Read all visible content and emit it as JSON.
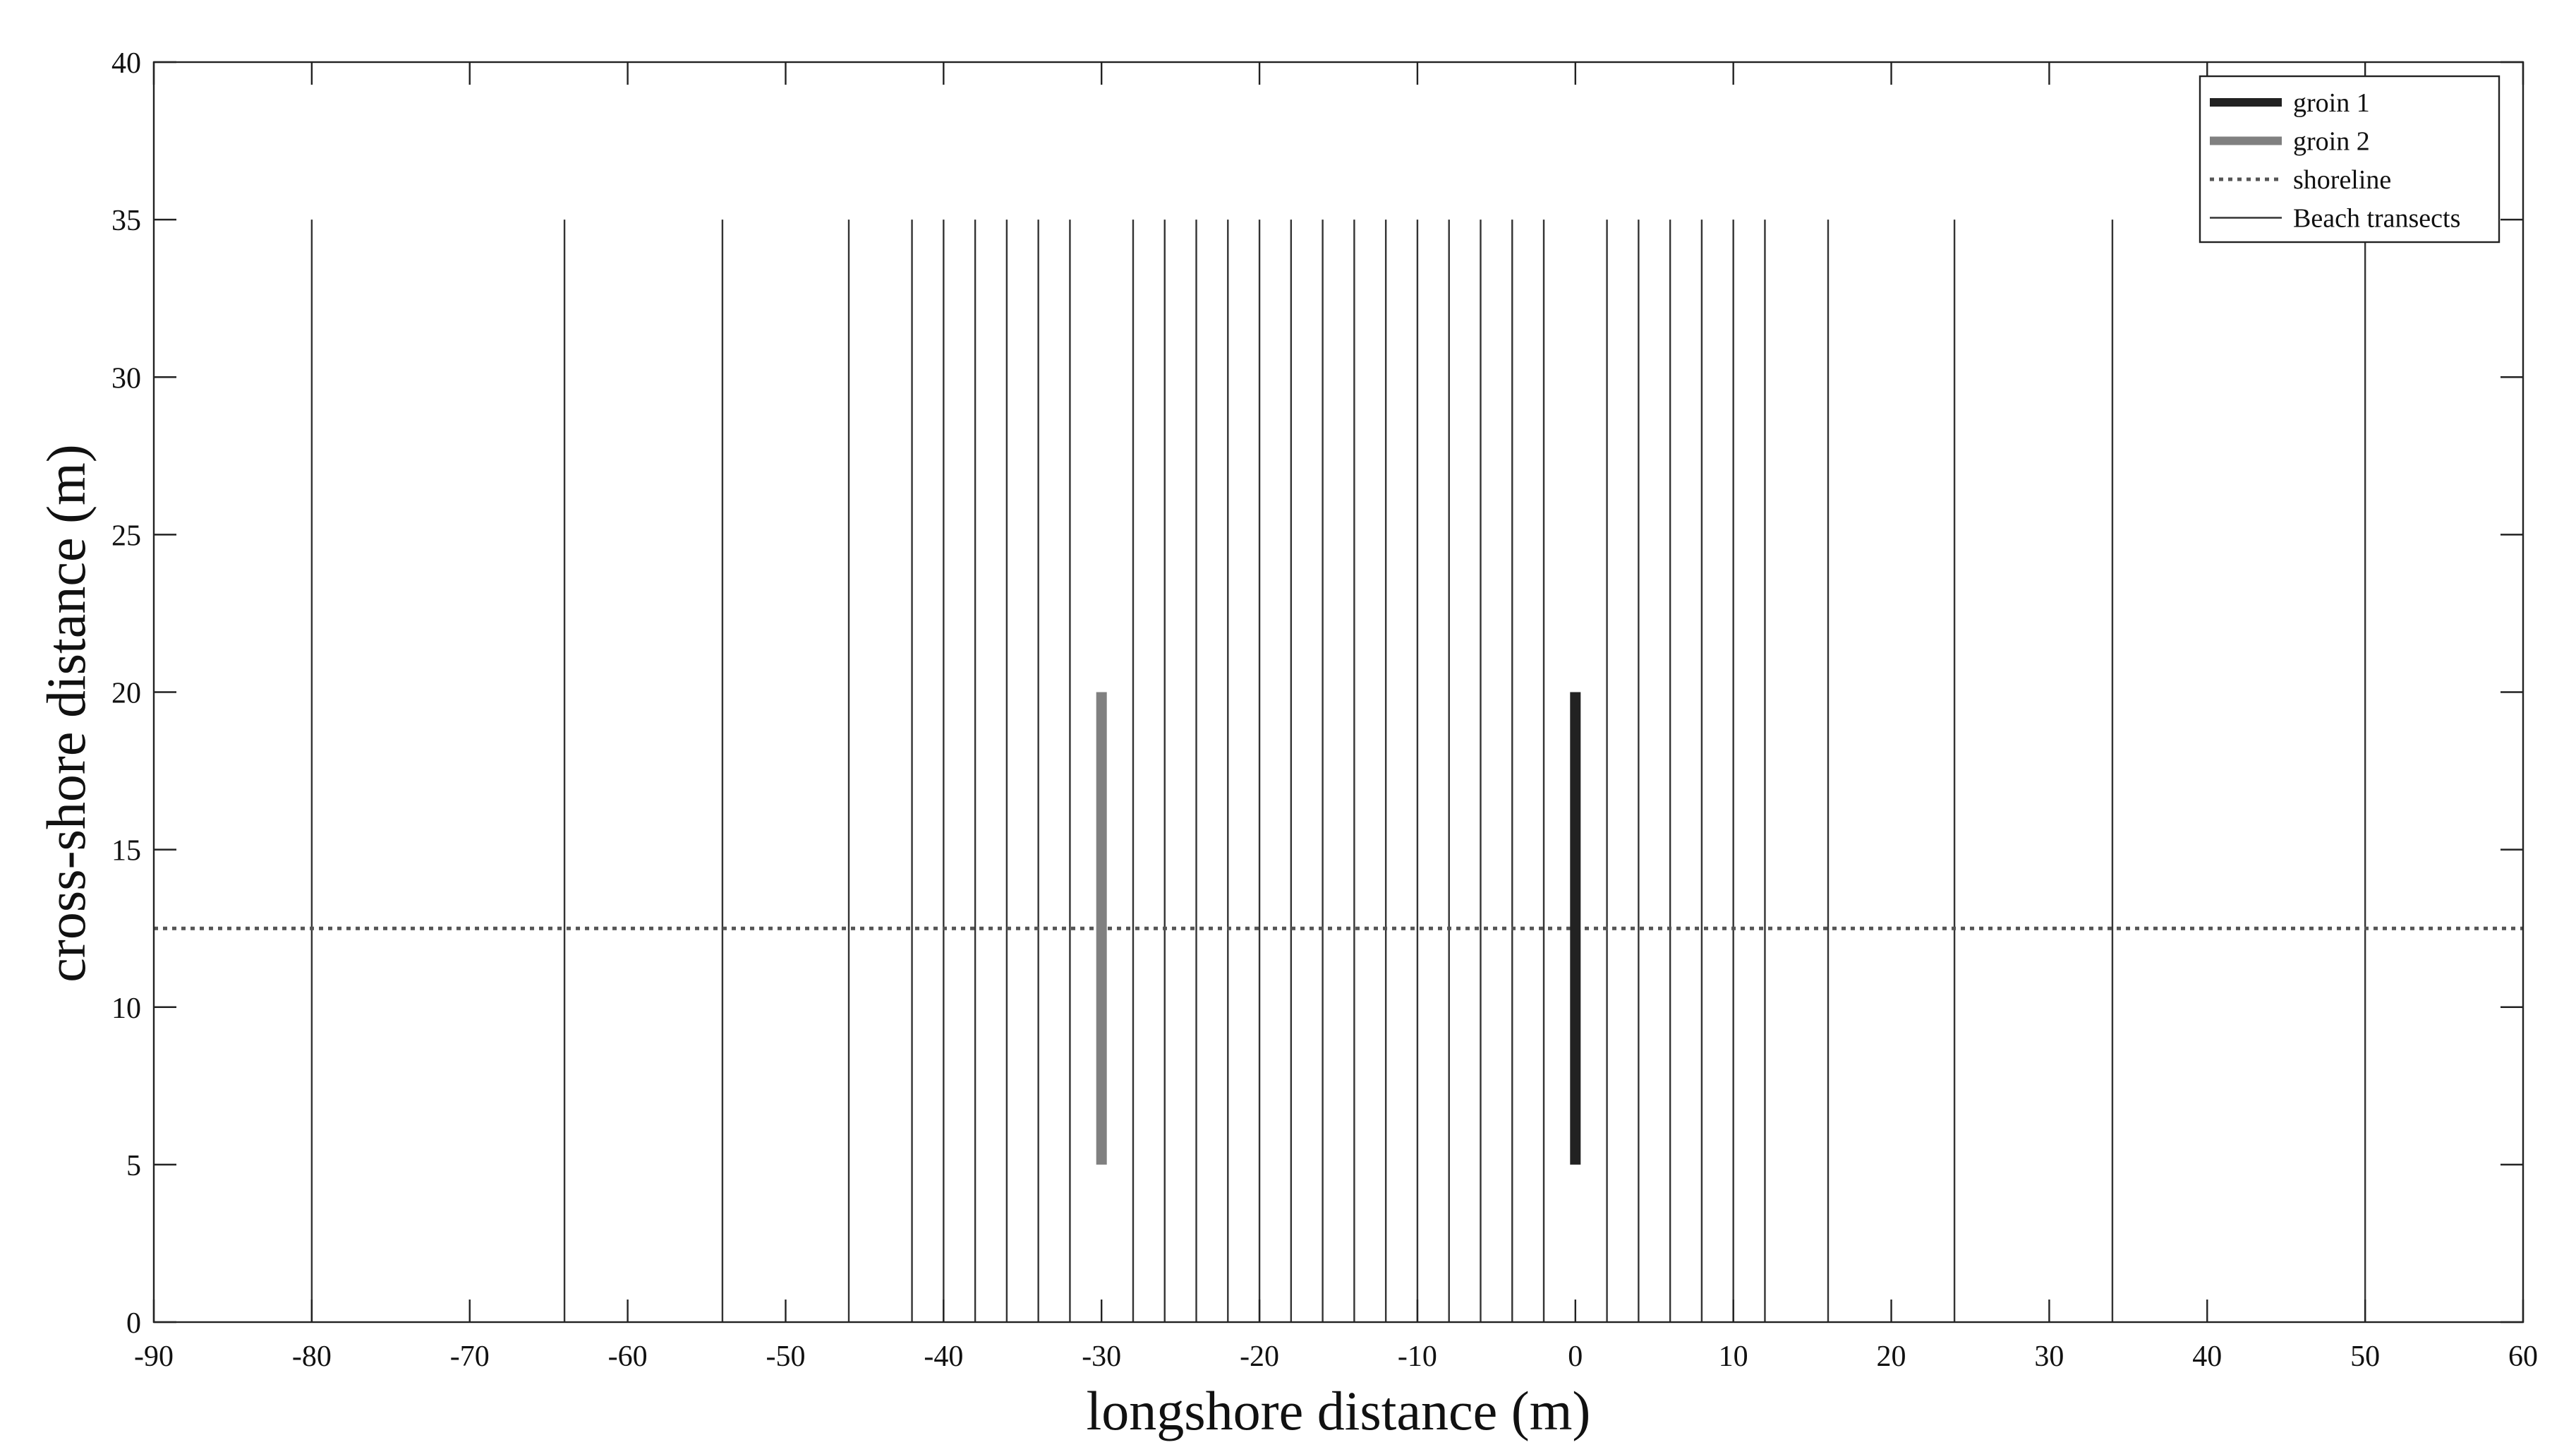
{
  "chart_data": {
    "type": "line",
    "title": "",
    "xlabel": "longshore distance (m)",
    "ylabel": "cross-shore distance (m)",
    "xlim": [
      -90,
      60
    ],
    "ylim": [
      0,
      40
    ],
    "xticks": [
      -90,
      -80,
      -70,
      -60,
      -50,
      -40,
      -30,
      -20,
      -10,
      0,
      10,
      20,
      30,
      40,
      50,
      60
    ],
    "yticks": [
      0,
      5,
      10,
      15,
      20,
      25,
      30,
      35,
      40
    ],
    "grid": false,
    "legend_position": "top-right",
    "series": [
      {
        "name": "groin 1",
        "style": "solid-thick",
        "color": "#222222",
        "x": [
          0,
          0
        ],
        "y": [
          5,
          20
        ]
      },
      {
        "name": "groin 2",
        "style": "solid-thick",
        "color": "#808080",
        "x": [
          -30,
          -30
        ],
        "y": [
          5,
          20
        ]
      },
      {
        "name": "shoreline",
        "style": "dotted",
        "color": "#555555",
        "x": [
          -90,
          60
        ],
        "y": [
          12.5,
          12.5
        ]
      },
      {
        "name": "Beach transects",
        "style": "solid-thin",
        "color": "#333333",
        "y_range": [
          0,
          35
        ],
        "x_positions": [
          -80,
          -64,
          -54,
          -46,
          -42,
          -40,
          -38,
          -36,
          -34,
          -32,
          -28,
          -26,
          -24,
          -22,
          -20,
          -18,
          -16,
          -14,
          -12,
          -10,
          -8,
          -6,
          -4,
          -2,
          2,
          4,
          6,
          8,
          10,
          12,
          16,
          24,
          34,
          50
        ]
      }
    ]
  }
}
